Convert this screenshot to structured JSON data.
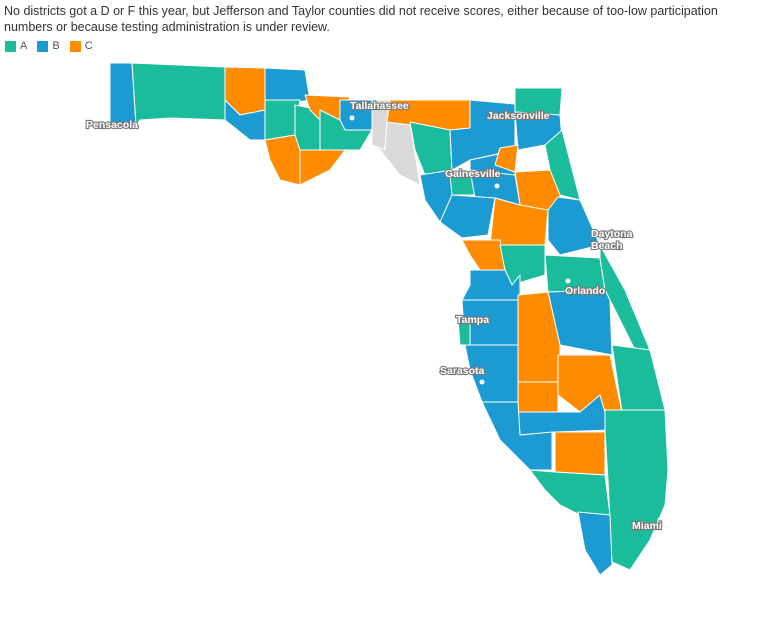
{
  "caption": "No districts got a D or F this year, but Jefferson and Taylor counties did not receive scores, either because of too-low participation numbers or because testing administration is under review.",
  "legend": [
    {
      "label": "A",
      "color": "#1bbc9b"
    },
    {
      "label": "B",
      "color": "#1b9bd1"
    },
    {
      "label": "C",
      "color": "#ff8c00"
    }
  ],
  "no_score_color": "#d9d9d9",
  "cities": {
    "tallahassee": "Tallahassee",
    "pensacola": "Pensacola",
    "jacksonville": "Jacksonville",
    "gainesville": "Gainesville",
    "daytona_1": "Daytona",
    "daytona_2": "Beach",
    "orlando": "Orlando",
    "tampa": "Tampa",
    "sarasota": "Sarasota",
    "miami": "Miami"
  }
}
